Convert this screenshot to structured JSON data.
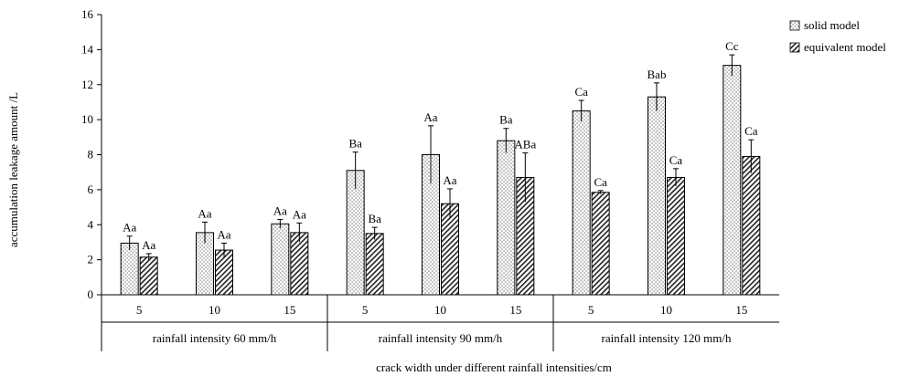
{
  "chart_data": {
    "type": "bar",
    "ylabel": "accumulation leakage amount /L",
    "xlabel": "crack width under different rainfall intensities/cm",
    "ylim": [
      0,
      16
    ],
    "yticks": [
      "0",
      "2",
      "4",
      "6",
      "8",
      "10",
      "12",
      "14",
      "16"
    ],
    "grid": false,
    "legend_position": "top-right",
    "groups": [
      {
        "label": "rainfall intensity 60 mm/h",
        "categories": [
          "5",
          "10",
          "15"
        ]
      },
      {
        "label": "rainfall intensity 90 mm/h",
        "categories": [
          "5",
          "10",
          "15"
        ]
      },
      {
        "label": "rainfall intensity 120 mm/h",
        "categories": [
          "5",
          "10",
          "15"
        ]
      }
    ],
    "series": [
      {
        "name": "solid model",
        "pattern": "dots",
        "values": [
          2.95,
          3.55,
          4.05,
          7.1,
          8.0,
          8.8,
          10.5,
          11.3,
          13.1
        ],
        "errors": [
          0.4,
          0.6,
          0.25,
          1.05,
          1.65,
          0.7,
          0.6,
          0.8,
          0.6
        ],
        "labels": [
          "Aa",
          "Aa",
          "Aa",
          "Ba",
          "Aa",
          "Ba",
          "Ca",
          "Bab",
          "Cc"
        ]
      },
      {
        "name": "equivalent model",
        "pattern": "hatch",
        "values": [
          2.15,
          2.55,
          3.55,
          3.5,
          5.2,
          6.7,
          5.85,
          6.7,
          7.9
        ],
        "errors": [
          0.2,
          0.4,
          0.55,
          0.35,
          0.85,
          1.4,
          0.1,
          0.5,
          0.95
        ],
        "labels": [
          "Aa",
          "Aa",
          "Aa",
          "Ba",
          "Aa",
          "ABa",
          "Ca",
          "Ca",
          "Ca"
        ]
      }
    ]
  }
}
